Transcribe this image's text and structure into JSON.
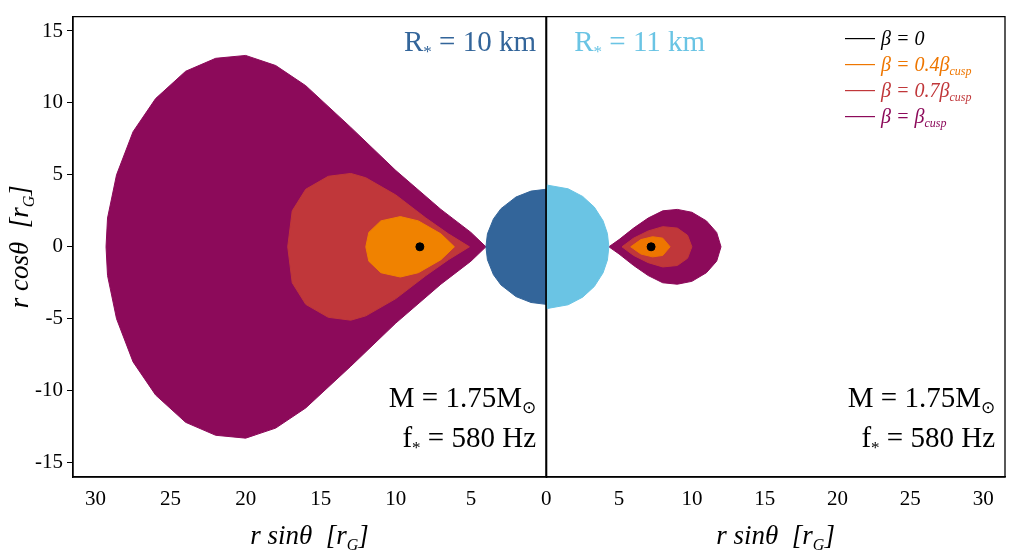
{
  "chart_data": [
    {
      "type": "area",
      "xlabel": "r sinθ  [r$_{G}$]",
      "ylabel": "r cosθ  [r$_{G}$]",
      "xlim": [
        31.5,
        0
      ],
      "xticks": [
        30,
        25,
        20,
        15,
        10,
        5
      ],
      "ylim": [
        -16,
        16
      ],
      "yticks": [
        -15,
        -10,
        -5,
        0,
        5,
        10,
        15
      ],
      "annotations": [
        "R$_{*}$ = 10 km",
        "M = 1.75M$_{⊙}$",
        "f$_{*}$ = 580 Hz"
      ],
      "series": [
        {
          "color": "#33659a",
          "x": [
            0,
            1,
            2,
            3,
            3.5,
            3.9,
            4,
            3.9,
            3.5,
            3,
            2,
            1,
            0,
            0
          ],
          "values": [
            4,
            3.87,
            3.46,
            2.65,
            1.94,
            0.9,
            0,
            -0.9,
            -1.94,
            -2.65,
            -3.46,
            -3.87,
            -4,
            4
          ]
        },
        {
          "type": "scatter",
          "marker": "circle",
          "color": "#000000",
          "x": [
            8.4
          ],
          "values": [
            0
          ]
        },
        {
          "color": "#f08200",
          "x": [
            6.1,
            7,
            8.5,
            9.7,
            11,
            11.8,
            12,
            11.8,
            11,
            9.7,
            8.5,
            7,
            6.1
          ],
          "values": [
            0,
            0.9,
            1.8,
            2.1,
            1.8,
            1,
            0,
            -1,
            -1.8,
            -2.1,
            -1.8,
            -0.9,
            0
          ]
        },
        {
          "color": "#c0373a",
          "x": [
            5.1,
            6.5,
            8,
            10,
            12,
            13,
            14.5,
            16,
            16.9,
            17.2,
            16.9,
            16,
            14.5,
            13,
            12,
            10,
            8,
            6.5,
            5.1
          ],
          "values": [
            0,
            0.9,
            2,
            3.6,
            4.8,
            5.1,
            4.9,
            4,
            2.5,
            0,
            -2.5,
            -4,
            -4.9,
            -5.1,
            -4.8,
            -3.6,
            -2,
            -0.9,
            0
          ]
        },
        {
          "color": "#8c0a5a",
          "x": [
            4,
            5,
            7,
            10,
            13,
            16,
            18,
            20,
            22,
            24,
            26,
            27.5,
            28.6,
            29.2,
            29.3,
            29.2,
            28.6,
            27.5,
            26,
            24,
            22,
            20,
            18,
            16,
            13,
            10,
            7,
            5,
            4
          ],
          "values": [
            0,
            1,
            2.6,
            5.3,
            8.3,
            11.2,
            12.6,
            13.3,
            13.1,
            12.2,
            10.3,
            8,
            5,
            2,
            0,
            -2,
            -5,
            -8,
            -10.3,
            -12.2,
            -13.1,
            -13.3,
            -12.6,
            -11.2,
            -8.3,
            -5.3,
            -2.6,
            -1,
            0
          ]
        }
      ]
    },
    {
      "type": "area",
      "xlabel": "r sinθ  [r$_{G}$]",
      "xlim": [
        0,
        31.5
      ],
      "xticks": [
        0,
        5,
        10,
        15,
        20,
        25,
        30
      ],
      "ylim": [
        -16,
        16
      ],
      "yticks": [
        -15,
        -10,
        -5,
        0,
        5,
        10,
        15
      ],
      "tick_labels": "x",
      "legend": "top right",
      "annotations": [
        "R$_{*}$ = 11 km",
        "M = 1.75M$_{⊙}$",
        "f$_{*}$ = 580 Hz"
      ],
      "series": [
        {
          "color": "#6ac4e4",
          "x": [
            0,
            1.5,
            2.5,
            3.3,
            3.9,
            4.2,
            4.3,
            4.2,
            3.9,
            3.3,
            2.5,
            1.5,
            0,
            0
          ],
          "values": [
            4.3,
            4.03,
            3.5,
            2.76,
            1.81,
            0.92,
            0,
            -0.92,
            -1.81,
            -2.76,
            -3.5,
            -4.03,
            -4.3,
            4.3
          ]
        },
        {
          "type": "scatter",
          "marker": "circle",
          "name": "β = 0",
          "color": "#000000",
          "x": [
            7.2
          ],
          "values": [
            0
          ]
        },
        {
          "name": "β = 0.4β$_{cusp}$",
          "color": "#ee7600",
          "x": [
            5.8,
            6.5,
            7.3,
            8,
            8.5,
            8,
            7.3,
            6.5,
            5.8
          ],
          "values": [
            0,
            0.5,
            0.7,
            0.6,
            0,
            -0.6,
            -0.7,
            -0.5,
            0
          ]
        },
        {
          "name": "β = 0.7β$_{cusp}$",
          "color": "#c0373a",
          "x": [
            5.2,
            6,
            7,
            8,
            9,
            9.7,
            10,
            9.7,
            9,
            8,
            7,
            6,
            5.2
          ],
          "values": [
            0,
            0.6,
            1.1,
            1.4,
            1.3,
            0.8,
            0,
            -0.8,
            -1.3,
            -1.4,
            -1.1,
            -0.6,
            0
          ]
        },
        {
          "name": "β = β$_{cusp}$",
          "color": "#8c0a5a",
          "x": [
            4.3,
            5,
            6,
            7,
            8,
            9,
            10,
            11,
            11.7,
            12,
            11.7,
            11,
            10,
            9,
            8,
            7,
            6,
            5,
            4.3
          ],
          "values": [
            0,
            0.5,
            1.3,
            2,
            2.5,
            2.6,
            2.4,
            1.8,
            1,
            0,
            -1,
            -1.8,
            -2.4,
            -2.6,
            -2.5,
            -2,
            -1.3,
            -0.5,
            0
          ]
        }
      ]
    }
  ]
}
